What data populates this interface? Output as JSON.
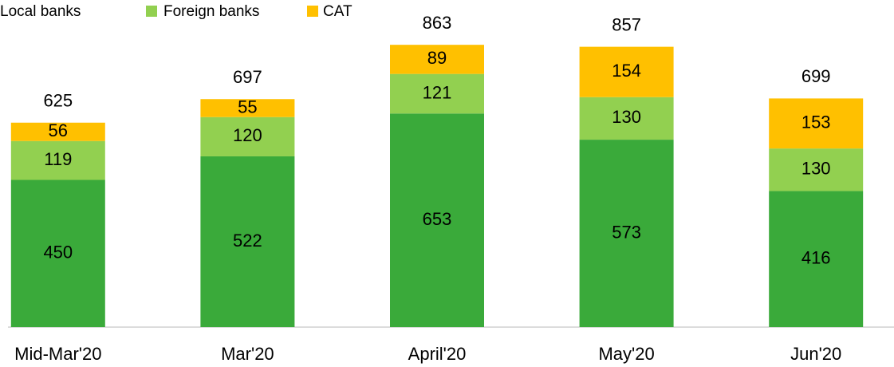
{
  "chart_data": {
    "type": "stacked_bar",
    "categories": [
      "Mid-Mar'20",
      "Mar'20",
      "April'20",
      "May'20",
      "Jun'20"
    ],
    "series": [
      {
        "name": "Local banks",
        "color": "#3aaa3a",
        "values": [
          450,
          522,
          653,
          573,
          416
        ]
      },
      {
        "name": "Foreign banks",
        "color": "#92d050",
        "values": [
          119,
          120,
          121,
          130,
          130
        ]
      },
      {
        "name": "CAT",
        "color": "#ffc000",
        "values": [
          56,
          55,
          89,
          154,
          153
        ]
      }
    ],
    "totals": [
      625,
      697,
      863,
      857,
      699
    ],
    "ylim": [
      0,
      1000
    ],
    "legend": "top-left"
  }
}
